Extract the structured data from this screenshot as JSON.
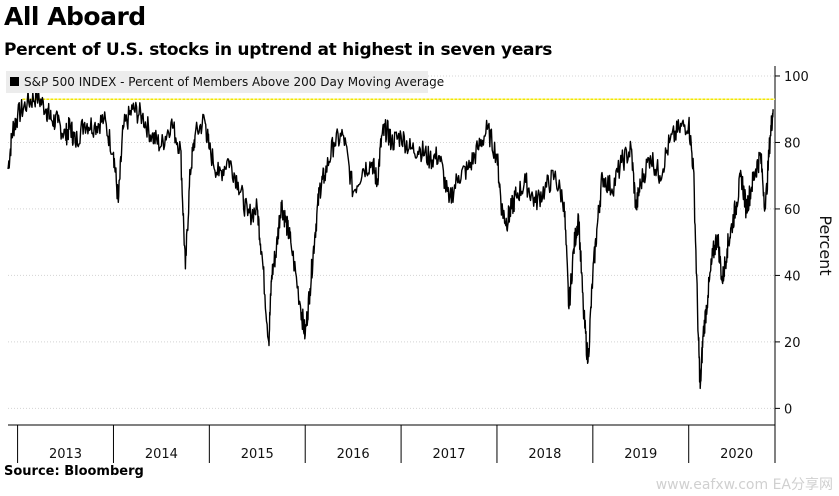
{
  "title": "All Aboard",
  "subtitle": "Percent of U.S. stocks in uptrend at highest in seven years",
  "source": "Source: Bloomberg",
  "watermark": "www.eafxw.com  EA分享网",
  "chart_data": {
    "type": "line",
    "xlabel": "",
    "ylabel": "Percent",
    "ylim": [
      -5,
      103
    ],
    "xlim": [
      2012.9,
      2020.9
    ],
    "yticks": [
      0,
      20,
      40,
      60,
      80,
      100
    ],
    "xticks": [
      "2013",
      "2014",
      "2015",
      "2016",
      "2017",
      "2018",
      "2019",
      "2020"
    ],
    "legend": "top-left",
    "grid": true,
    "colors": {
      "line": "#000000",
      "reference": "#f2e600",
      "grid": "#d4d4d4"
    },
    "reference_line": {
      "y": 93
    },
    "series": [
      {
        "name": "S&P 500 INDEX - Percent of Members Above 200 Day Moving Average",
        "x": [
          2012.9,
          2012.95,
          2013.0,
          2013.1,
          2013.2,
          2013.3,
          2013.35,
          2013.42,
          2013.5,
          2013.55,
          2013.6,
          2013.7,
          2013.8,
          2013.9,
          2014.0,
          2014.05,
          2014.1,
          2014.2,
          2014.3,
          2014.4,
          2014.5,
          2014.6,
          2014.7,
          2014.75,
          2014.8,
          2014.85,
          2014.95,
          2015.0,
          2015.1,
          2015.2,
          2015.3,
          2015.4,
          2015.5,
          2015.55,
          2015.62,
          2015.65,
          2015.7,
          2015.75,
          2015.8,
          2015.85,
          2015.95,
          2016.0,
          2016.05,
          2016.1,
          2016.15,
          2016.2,
          2016.3,
          2016.4,
          2016.5,
          2016.6,
          2016.7,
          2016.75,
          2016.8,
          2016.85,
          2016.9,
          2017.0,
          2017.1,
          2017.2,
          2017.3,
          2017.4,
          2017.5,
          2017.6,
          2017.7,
          2017.8,
          2017.9,
          2018.0,
          2018.05,
          2018.1,
          2018.15,
          2018.2,
          2018.3,
          2018.4,
          2018.5,
          2018.6,
          2018.7,
          2018.75,
          2018.8,
          2018.85,
          2018.9,
          2018.95,
          2019.0,
          2019.05,
          2019.1,
          2019.2,
          2019.3,
          2019.4,
          2019.45,
          2019.5,
          2019.6,
          2019.7,
          2019.8,
          2019.9,
          2020.0,
          2020.05,
          2020.1,
          2020.12,
          2020.15,
          2020.2,
          2020.25,
          2020.3,
          2020.35,
          2020.4,
          2020.45,
          2020.5,
          2020.55,
          2020.6,
          2020.65,
          2020.7,
          2020.75,
          2020.8,
          2020.85,
          2020.88
        ],
        "values": [
          72,
          84,
          88,
          92,
          94,
          90,
          87,
          86,
          82,
          85,
          80,
          86,
          85,
          87,
          77,
          62,
          84,
          90,
          88,
          82,
          79,
          86,
          78,
          42,
          71,
          82,
          87,
          78,
          70,
          75,
          68,
          58,
          60,
          46,
          20,
          40,
          48,
          62,
          56,
          50,
          31,
          22,
          36,
          52,
          66,
          70,
          80,
          82,
          65,
          72,
          74,
          68,
          82,
          84,
          80,
          82,
          78,
          78,
          75,
          76,
          62,
          70,
          72,
          78,
          84,
          76,
          60,
          56,
          60,
          64,
          68,
          62,
          66,
          70,
          62,
          30,
          48,
          58,
          30,
          14,
          40,
          56,
          70,
          66,
          74,
          78,
          60,
          68,
          76,
          70,
          80,
          84,
          86,
          72,
          22,
          6,
          22,
          34,
          46,
          52,
          38,
          48,
          55,
          62,
          70,
          60,
          66,
          72,
          76,
          60,
          82,
          90
        ]
      }
    ]
  }
}
